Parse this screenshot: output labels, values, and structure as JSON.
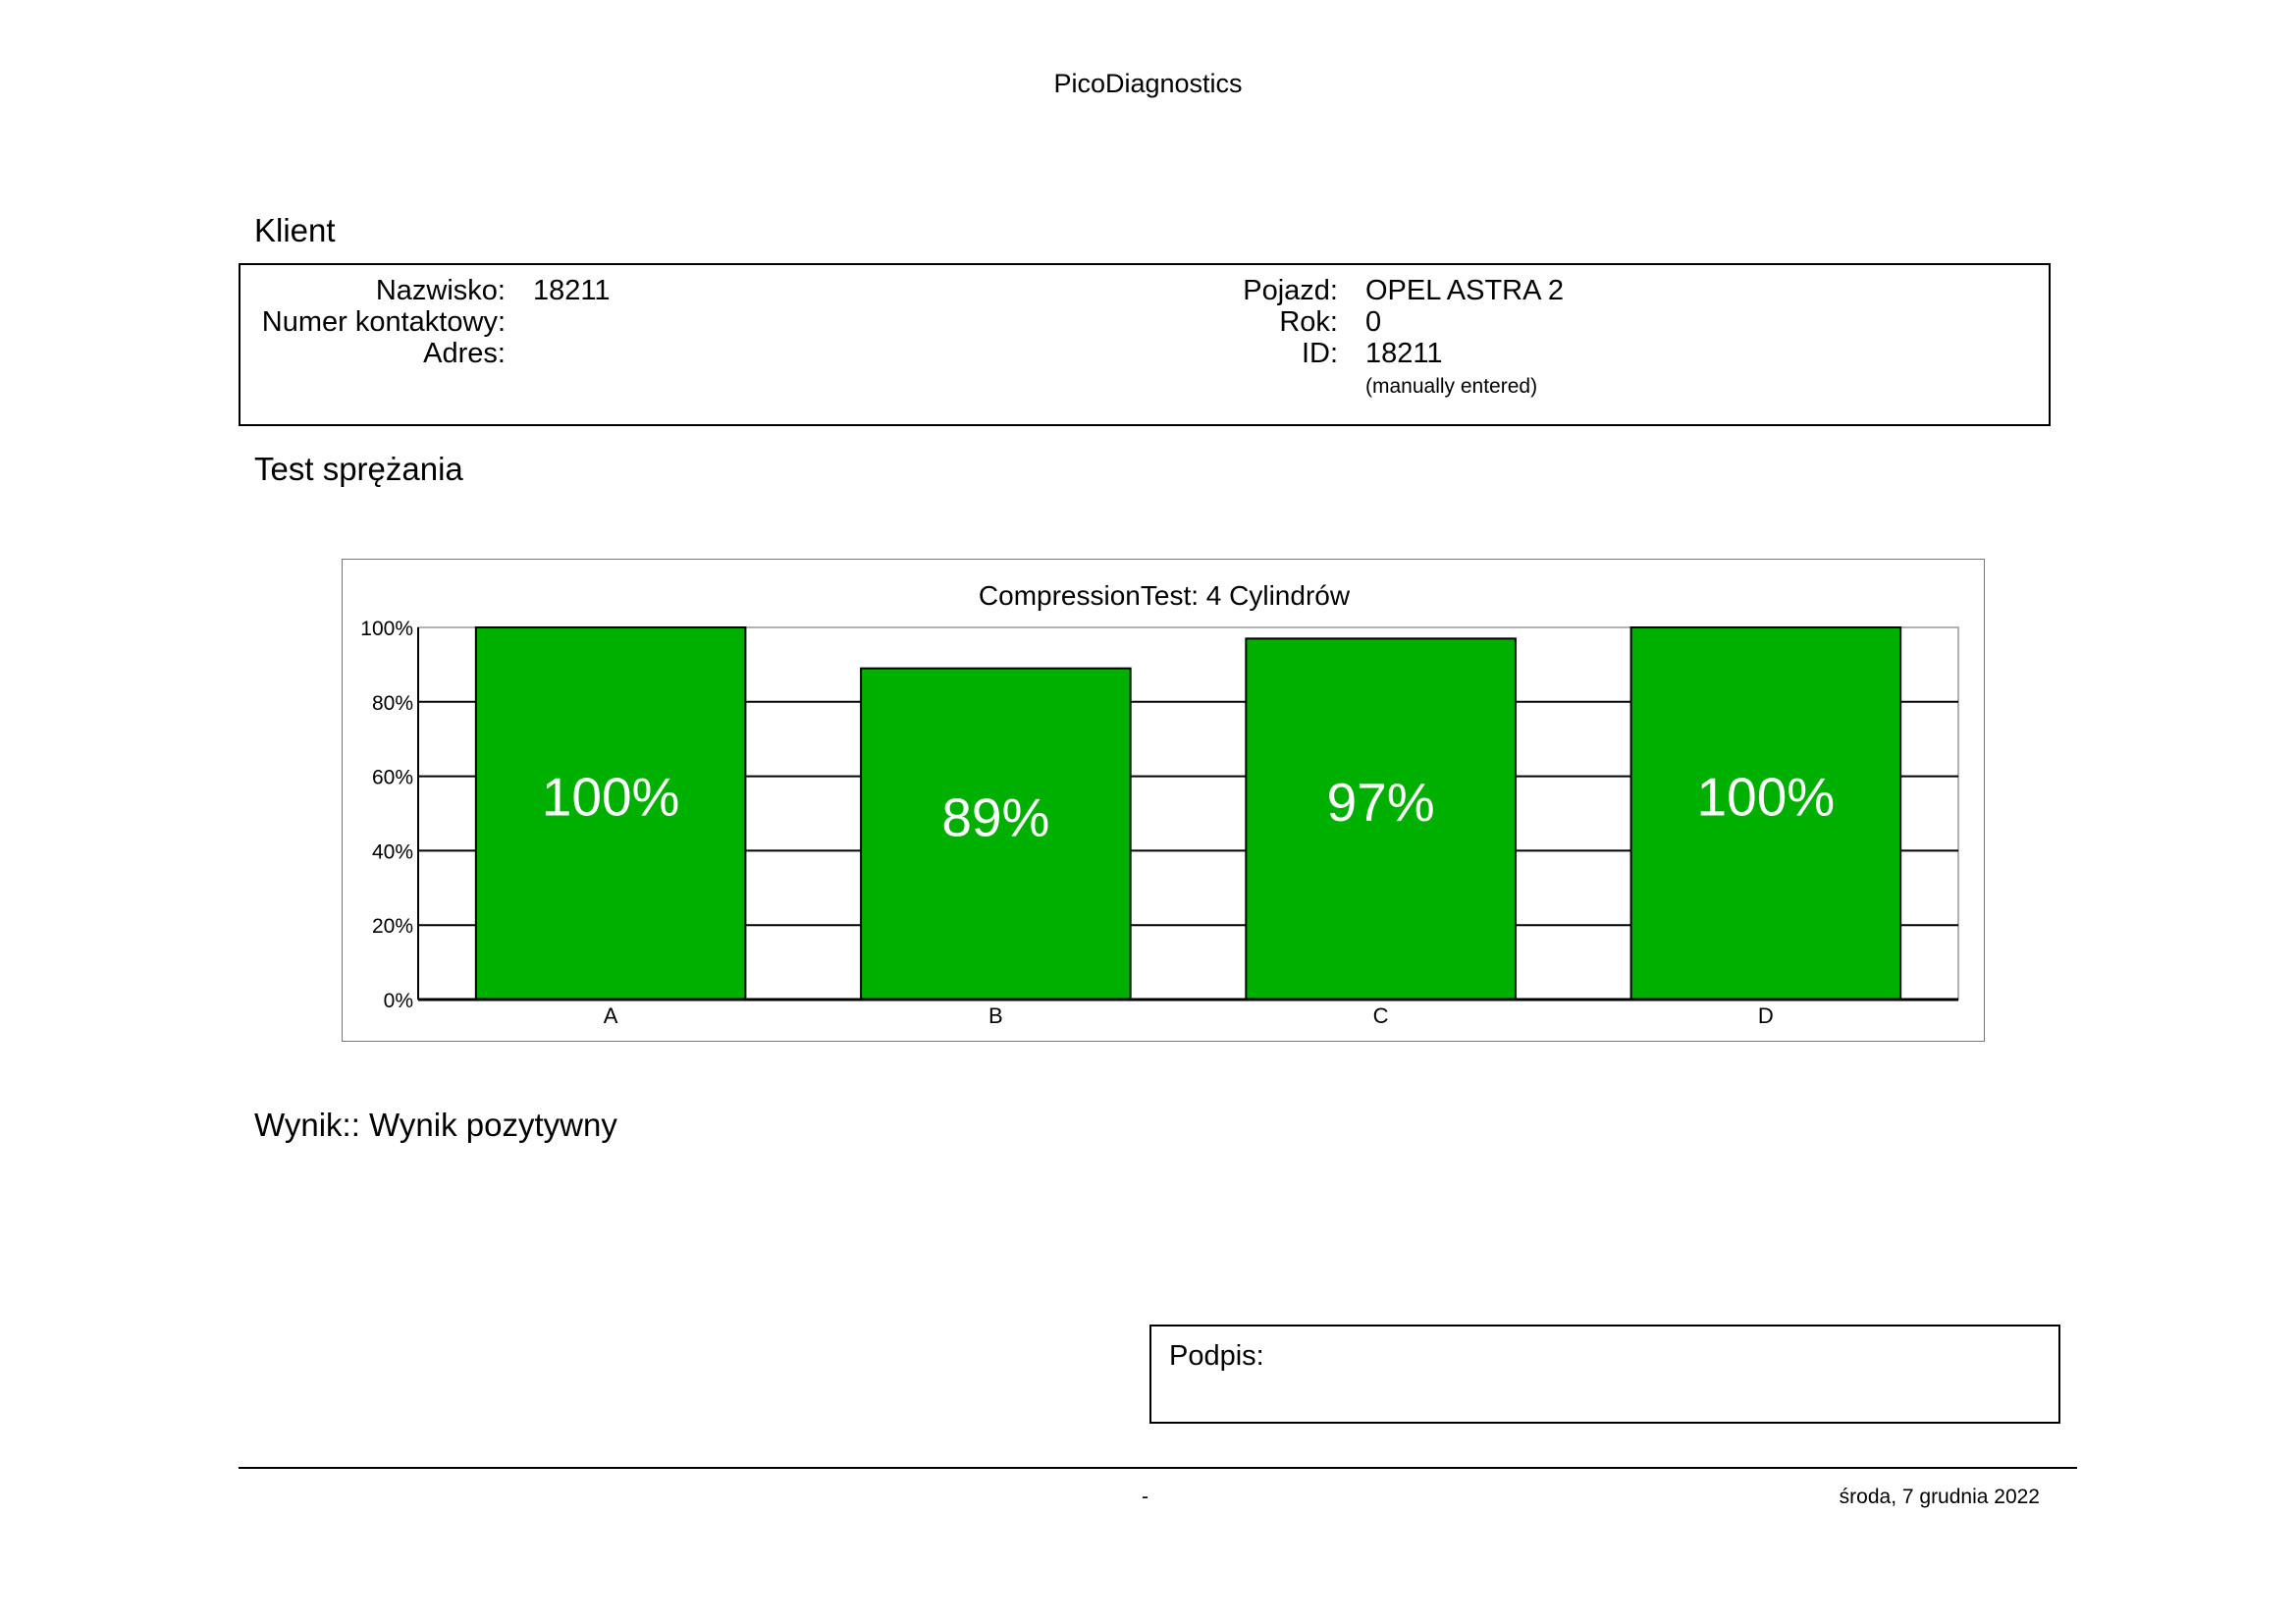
{
  "header": {
    "title": "PicoDiagnostics"
  },
  "client_section": {
    "heading": "Klient",
    "fields_left": [
      {
        "label": "Nazwisko:",
        "value": "18211"
      },
      {
        "label": "Numer kontaktowy:",
        "value": ""
      },
      {
        "label": "Adres:",
        "value": ""
      }
    ],
    "fields_right": [
      {
        "label": "Pojazd:",
        "value": "OPEL ASTRA 2"
      },
      {
        "label": "Rok:",
        "value": "0"
      },
      {
        "label": "ID:",
        "value": "18211"
      }
    ],
    "id_note": "(manually entered)"
  },
  "test_section": {
    "heading": "Test sprężania"
  },
  "chart_data": {
    "type": "bar",
    "title": "CompressionTest: 4 Cylindrów",
    "categories": [
      "A",
      "B",
      "C",
      "D"
    ],
    "values": [
      100,
      89,
      97,
      100
    ],
    "value_labels": [
      "100%",
      "89%",
      "97%",
      "100%"
    ],
    "ylim": [
      0,
      100
    ],
    "yticks": [
      "0%",
      "20%",
      "40%",
      "60%",
      "80%",
      "100%"
    ],
    "xlabel": "",
    "ylabel": "",
    "grid": true,
    "bar_color": "#00B000",
    "label_color": "#ffffff"
  },
  "result": {
    "text": "Wynik:: Wynik pozytywny"
  },
  "signature": {
    "label": "Podpis:"
  },
  "footer": {
    "center_text": "-",
    "date": "środa, 7 grudnia 2022"
  }
}
